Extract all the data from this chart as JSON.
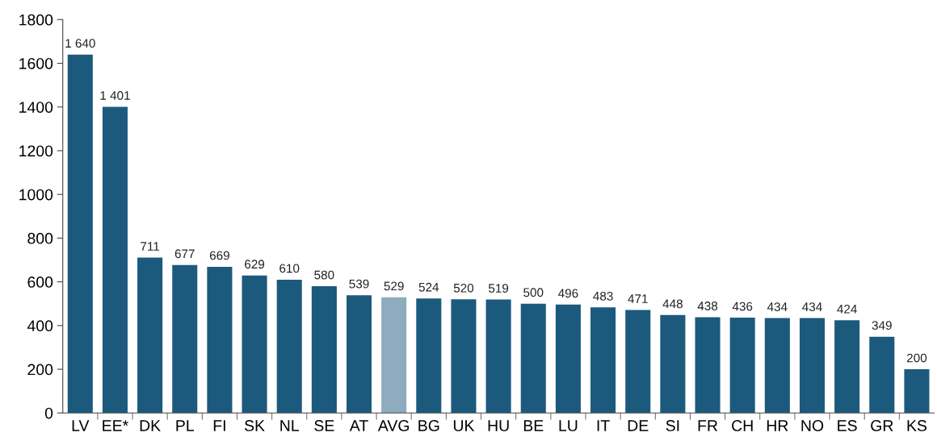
{
  "chart_data": {
    "type": "bar",
    "categories": [
      "LV",
      "EE*",
      "DK",
      "PL",
      "FI",
      "SK",
      "NL",
      "SE",
      "AT",
      "AVG",
      "BG",
      "UK",
      "HU",
      "BE",
      "LU",
      "IT",
      "DE",
      "SI",
      "FR",
      "CH",
      "HR",
      "NO",
      "ES",
      "GR",
      "KS"
    ],
    "values": [
      1640,
      1401,
      711,
      677,
      669,
      629,
      610,
      580,
      539,
      529,
      524,
      520,
      519,
      500,
      496,
      483,
      471,
      448,
      438,
      436,
      434,
      434,
      424,
      349,
      200
    ],
    "value_labels": [
      "1 640",
      "1 401",
      "711",
      "677",
      "669",
      "629",
      "610",
      "580",
      "539",
      "529",
      "524",
      "520",
      "519",
      "500",
      "496",
      "483",
      "471",
      "448",
      "438",
      "436",
      "434",
      "434",
      "424",
      "349",
      "200"
    ],
    "colors": [
      "#1c5a7d",
      "#1c5a7d",
      "#1c5a7d",
      "#1c5a7d",
      "#1c5a7d",
      "#1c5a7d",
      "#1c5a7d",
      "#1c5a7d",
      "#1c5a7d",
      "#8eacbe",
      "#1c5a7d",
      "#1c5a7d",
      "#1c5a7d",
      "#1c5a7d",
      "#1c5a7d",
      "#1c5a7d",
      "#1c5a7d",
      "#1c5a7d",
      "#1c5a7d",
      "#1c5a7d",
      "#1c5a7d",
      "#1c5a7d",
      "#1c5a7d",
      "#1c5a7d",
      "#1c5a7d"
    ],
    "ylim": [
      0,
      1800
    ],
    "yticks": [
      0,
      200,
      400,
      600,
      800,
      1000,
      1200,
      1400,
      1600,
      1800
    ],
    "grid": false,
    "legend": false
  }
}
